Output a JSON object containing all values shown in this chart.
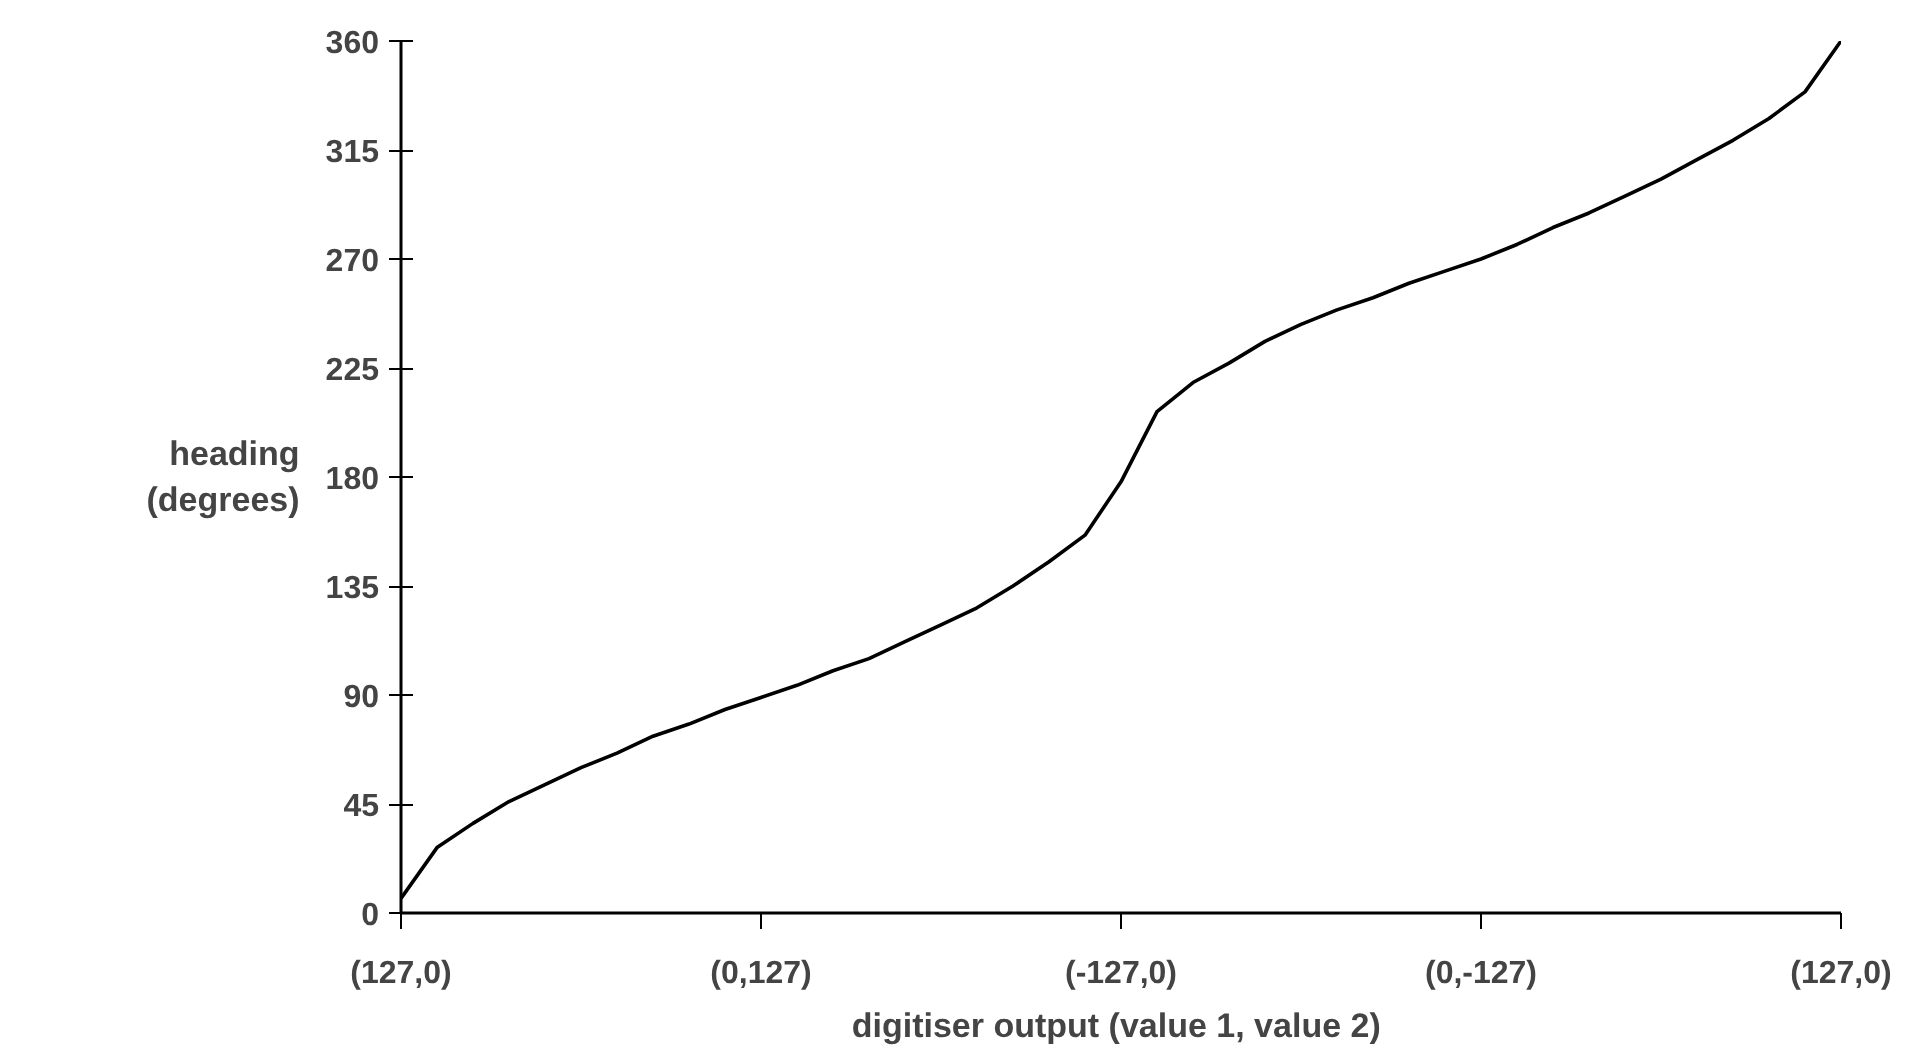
{
  "chart_data": {
    "type": "line",
    "xlabel": "digitiser output  (value 1, value 2)",
    "ylabel": "heading\n(degrees)",
    "categories": [
      "(127,0)",
      null,
      null,
      null,
      null,
      null,
      null,
      null,
      null,
      null,
      "(0,127)",
      null,
      null,
      null,
      null,
      null,
      null,
      null,
      null,
      null,
      "(-127,0)",
      null,
      null,
      null,
      null,
      null,
      null,
      null,
      null,
      null,
      "(0,-127)",
      null,
      null,
      null,
      null,
      null,
      null,
      null,
      null,
      null,
      "(127,0)"
    ],
    "ylim": [
      0,
      360
    ],
    "yticks": [
      0,
      45,
      90,
      135,
      180,
      225,
      270,
      315,
      360
    ],
    "marker": "none",
    "line_style": "solid",
    "series": [
      {
        "color": "#000000",
        "values": [
          6,
          27,
          37,
          46,
          53,
          60,
          66,
          73,
          78,
          84,
          89,
          94,
          100,
          105,
          112,
          119,
          126,
          135,
          145,
          156,
          178,
          207,
          219,
          227,
          236,
          243,
          249,
          254,
          260,
          265,
          270,
          276,
          283,
          289,
          296,
          303,
          311,
          319,
          328,
          339,
          360
        ]
      }
    ]
  }
}
